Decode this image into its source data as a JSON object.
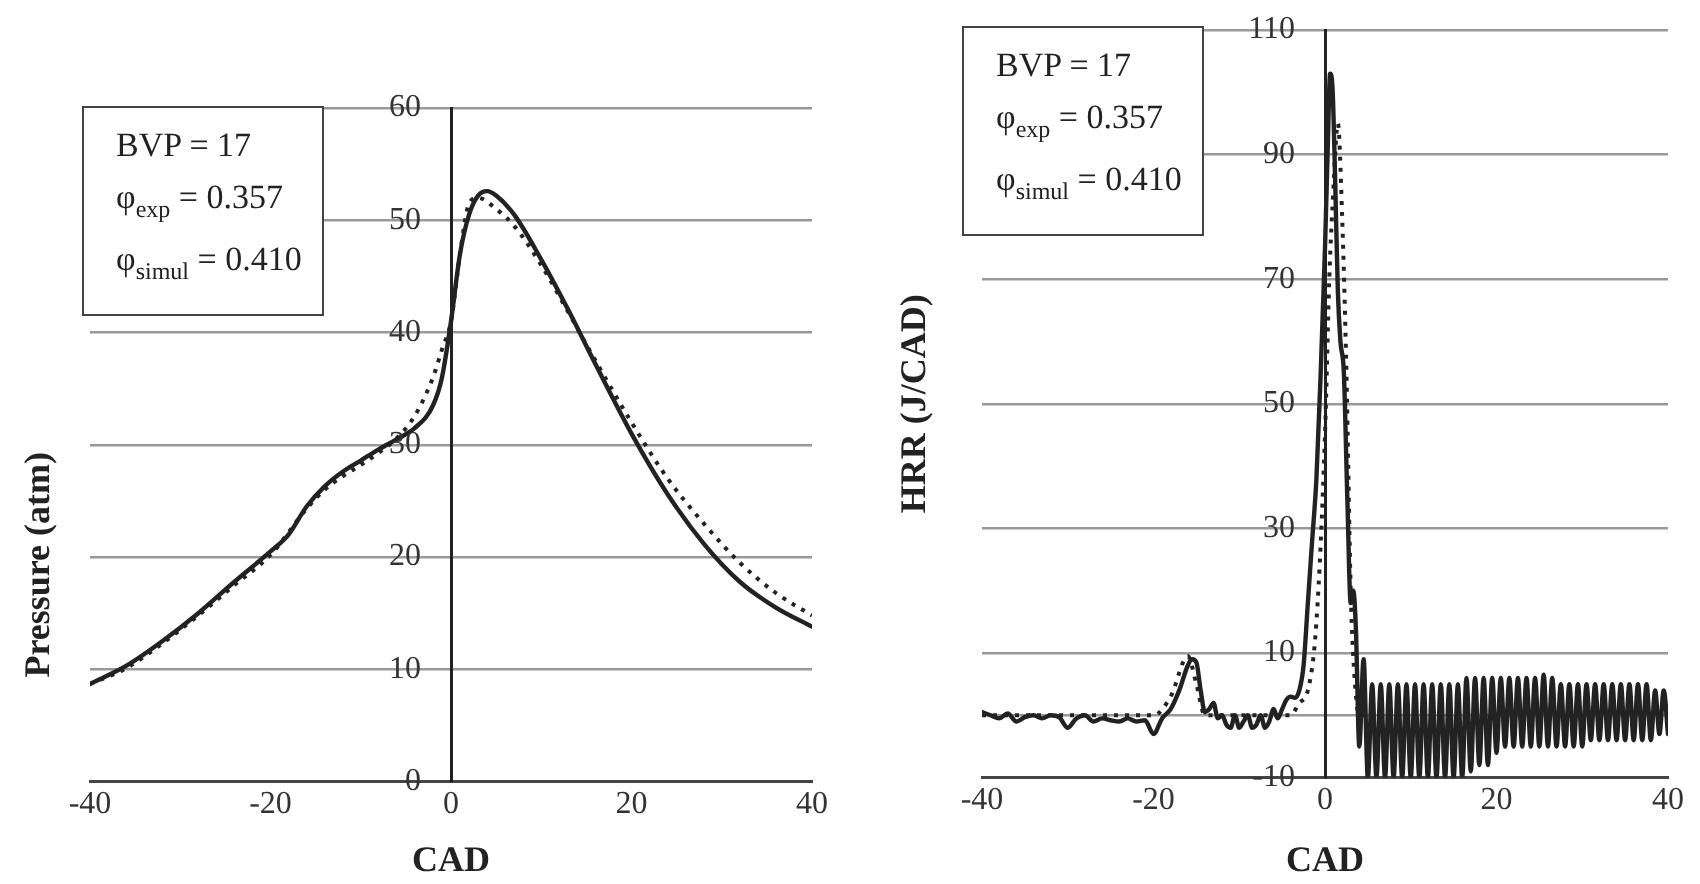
{
  "chart_data": [
    {
      "type": "line",
      "xlabel": "CAD",
      "ylabel": "Pressure (atm)",
      "xlim": [
        -40,
        40
      ],
      "xticks": [
        -40,
        -20,
        0,
        20,
        40
      ],
      "ylim": [
        0,
        60
      ],
      "yticks": [
        0,
        10,
        20,
        30,
        40,
        50,
        60
      ],
      "grid": "y",
      "marker": "none",
      "annotations": [
        "BVP = 17",
        "φ$_{exp}$ = 0.357",
        "φ$_{simul}$ = 0.410"
      ],
      "series": [
        {
          "color": "#222222",
          "line_style": "solid",
          "x": [
            -40,
            -36,
            -32,
            -28,
            -24,
            -20,
            -18,
            -16,
            -14,
            -12,
            -10,
            -8,
            -6,
            -4,
            -2,
            -1,
            0,
            1,
            2,
            3,
            4,
            5,
            7,
            10,
            13,
            16,
            20,
            24,
            28,
            32,
            36,
            40
          ],
          "values": [
            8.7,
            10.3,
            12.5,
            15,
            17.8,
            20.5,
            22,
            24.5,
            26.3,
            27.6,
            28.6,
            29.6,
            30.5,
            31.5,
            33.5,
            36,
            41,
            47,
            50.5,
            52.2,
            52.6,
            52.2,
            50.5,
            46.5,
            42,
            37.2,
            31,
            25.6,
            21.2,
            17.8,
            15.5,
            13.8
          ]
        },
        {
          "color": "#222222",
          "line_style": "dotted",
          "x": [
            -40,
            -36,
            -32,
            -28,
            -24,
            -20,
            -16,
            -14,
            -12,
            -10,
            -8,
            -6,
            -4,
            -2,
            -1,
            0,
            1,
            2,
            3,
            5,
            7,
            10,
            13,
            16,
            20,
            24,
            28,
            32,
            36,
            40
          ],
          "values": [
            8.7,
            10.1,
            12.3,
            14.8,
            17.5,
            20.2,
            24.3,
            26,
            27.2,
            28.2,
            29.3,
            30.6,
            32.6,
            36,
            38.5,
            41,
            47,
            51.5,
            52,
            51,
            49.5,
            46,
            41.8,
            37.5,
            32,
            27,
            23,
            19.5,
            16.8,
            14.8
          ]
        }
      ]
    },
    {
      "type": "line",
      "xlabel": "CAD",
      "ylabel": "HRR (J/CAD)",
      "xlim": [
        -40,
        40
      ],
      "xticks": [
        -40,
        -20,
        0,
        20,
        40
      ],
      "ylim": [
        -10,
        110
      ],
      "yticks": [
        -10,
        {
          "value": 0,
          "label": null
        },
        10,
        30,
        50,
        70,
        90,
        110
      ],
      "grid": "y",
      "marker": "none",
      "annotations": [
        "BVP = 17",
        "φ$_{exp}$ = 0.357",
        "φ$_{simul}$ = 0.410"
      ],
      "series": [
        {
          "color": "#222222",
          "line_style": "solid",
          "x": [
            -40,
            -39,
            -38,
            -37,
            -36,
            -35,
            -34,
            -33,
            -32,
            -31,
            -30,
            -29,
            -28,
            -27,
            -26,
            -25,
            -24,
            -23,
            -22,
            -21,
            -20,
            -19,
            -18,
            -17,
            -16,
            -15.5,
            -15,
            -14.5,
            -14,
            -13.5,
            -13,
            -12.5,
            -12,
            -11.5,
            -11,
            -10.5,
            -10,
            -9.5,
            -9,
            -8.5,
            -8,
            -7.5,
            -7,
            -6.5,
            -6,
            -5.5,
            -5,
            -4.5,
            -4,
            -3.5,
            -3,
            -2.5,
            -2,
            -1.5,
            -1,
            -0.5,
            0,
            0.3,
            0.6,
            0.9,
            1.2,
            1.5,
            1.8,
            2.2,
            2.6,
            3,
            3.3,
            3.6,
            4,
            4.5,
            5,
            5.5,
            6,
            6.5,
            7,
            7.5,
            8,
            8.5,
            9,
            9.5,
            10,
            10.5,
            11,
            11.5,
            12,
            12.5,
            13,
            13.5,
            14,
            14.5,
            15,
            15.5,
            16,
            16.5,
            17,
            17.5,
            18,
            18.5,
            19,
            19.5,
            20,
            20.5,
            21,
            21.5,
            22,
            22.5,
            23,
            23.5,
            24,
            24.5,
            25,
            25.5,
            26,
            26.5,
            27,
            27.5,
            28,
            28.5,
            29,
            29.5,
            30,
            30.5,
            31,
            31.5,
            32,
            32.5,
            33,
            33.5,
            34,
            34.5,
            35,
            35.5,
            36,
            36.5,
            37,
            37.5,
            38,
            38.5,
            39,
            39.5,
            40
          ],
          "values": [
            0.5,
            0,
            -0.5,
            0.3,
            -1,
            -0.3,
            0,
            -0.5,
            0,
            -0.3,
            -2,
            -0.5,
            0,
            -1,
            -0.5,
            -0.8,
            -1,
            -0.5,
            -1,
            -0.8,
            -3,
            -0.5,
            1,
            4,
            8,
            9,
            8.5,
            4,
            0.5,
            1,
            2,
            -0.5,
            0,
            -1.5,
            -2,
            0,
            -2,
            -1,
            0,
            -2,
            -1.5,
            0,
            -2,
            -1,
            1,
            -0.5,
            1,
            2.5,
            3,
            2.8,
            4,
            8,
            18,
            28,
            38,
            55,
            75,
            90,
            103,
            100,
            85,
            68,
            60,
            55,
            35,
            18,
            20,
            14,
            -5,
            9,
            -10,
            5,
            -10,
            5,
            -10,
            5,
            -10,
            5,
            -10,
            5,
            -10,
            5,
            -10,
            5,
            -10,
            5,
            -10,
            5,
            -10,
            5,
            -10,
            5,
            -10,
            6,
            -9,
            6,
            -8,
            6,
            -8,
            6,
            -6,
            6,
            -5,
            6,
            -5,
            6,
            -5,
            6,
            -5,
            6,
            -5,
            6.5,
            -5,
            6,
            -5,
            5,
            -5,
            5,
            -5,
            5,
            -5,
            5,
            -4,
            5,
            -4,
            5,
            -4,
            5,
            -4,
            5,
            -4,
            5,
            -4,
            5,
            -4,
            5,
            -4,
            4,
            -3,
            4,
            -3
          ]
        },
        {
          "color": "#222222",
          "line_style": "dotted",
          "x": [
            -40,
            -20,
            -18,
            -16,
            -15,
            -14,
            -13,
            -4,
            -3,
            -2,
            -1,
            0,
            0.5,
            1,
            1.5,
            2,
            2.5,
            3,
            3.5,
            4,
            5
          ],
          "values": [
            0,
            0,
            3,
            9.5,
            5,
            0,
            0,
            0,
            2,
            4,
            15,
            45,
            70,
            85,
            95,
            80,
            55,
            20,
            5,
            0,
            0
          ]
        }
      ]
    }
  ]
}
